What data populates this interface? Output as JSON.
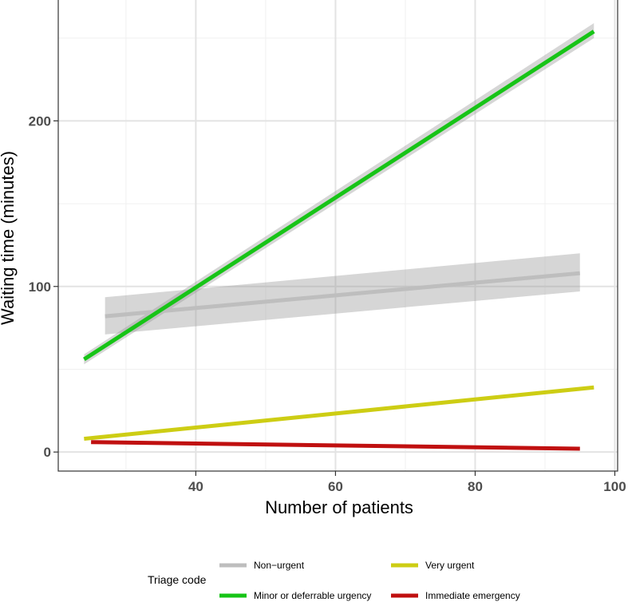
{
  "chart_data": {
    "type": "line",
    "xlabel": "Number of patients",
    "ylabel": "Waiting time (minutes)",
    "xlim": [
      20.3,
      100.4
    ],
    "ylim": [
      -11.5,
      273
    ],
    "x_ticks": [
      40,
      60,
      80,
      100
    ],
    "y_ticks": [
      0,
      100,
      200
    ],
    "grid": true,
    "legend": {
      "title": "Triage code",
      "placement": "bottom"
    },
    "series": [
      {
        "name": "Non−urgent",
        "color": "#bebebe",
        "x": [
          27,
          95
        ],
        "y": [
          82,
          108
        ],
        "band_lower": [
          71,
          97
        ],
        "band_upper": [
          93.5,
          120
        ]
      },
      {
        "name": "Minor or deferrable urgency",
        "color": "#17c417",
        "x": [
          24,
          97
        ],
        "y": [
          56,
          254
        ],
        "band_lower": [
          53,
          250
        ],
        "band_upper": [
          59,
          259
        ]
      },
      {
        "name": "Very urgent",
        "color": "#cdcd14",
        "x": [
          24,
          97
        ],
        "y": [
          8,
          39
        ],
        "band_lower": [
          7,
          38
        ],
        "band_upper": [
          9,
          40
        ]
      },
      {
        "name": "Immediate emergency",
        "color": "#c01010",
        "x": [
          25,
          95
        ],
        "y": [
          6,
          2
        ],
        "band_lower": [
          5,
          1
        ],
        "band_upper": [
          7,
          3
        ]
      }
    ]
  }
}
